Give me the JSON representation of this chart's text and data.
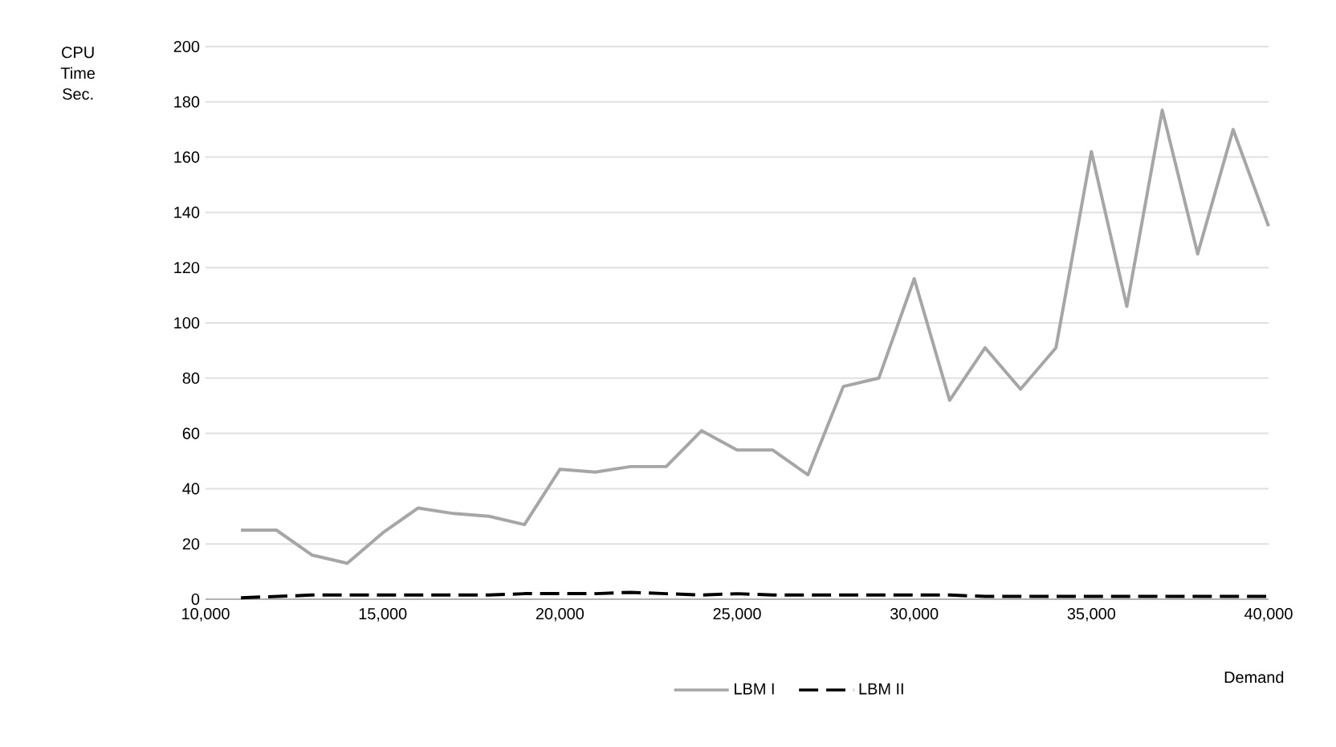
{
  "chart_data": {
    "type": "line",
    "xlabel": "Demand",
    "ylabel": "CPU Time Sec.",
    "x": [
      11000,
      12000,
      13000,
      14000,
      15000,
      16000,
      17000,
      18000,
      19000,
      20000,
      21000,
      22000,
      23000,
      24000,
      25000,
      26000,
      27000,
      28000,
      29000,
      30000,
      31000,
      32000,
      33000,
      34000,
      35000,
      36000,
      37000,
      38000,
      39000,
      40000
    ],
    "series": [
      {
        "name": "LBM I",
        "color": "#a6a6a6",
        "line_style": "solid",
        "values": [
          25,
          25,
          16,
          13,
          24,
          33,
          31,
          30,
          27,
          47,
          46,
          48,
          48,
          61,
          54,
          54,
          45,
          77,
          80,
          116,
          72,
          91,
          76,
          91,
          162,
          106,
          177,
          125,
          170,
          135
        ]
      },
      {
        "name": "LBM II",
        "color": "#000000",
        "line_style": "dashed",
        "values": [
          0.5,
          1,
          1.5,
          1.5,
          1.5,
          1.5,
          1.5,
          1.5,
          2,
          2,
          2,
          2.5,
          2,
          1.5,
          2,
          1.5,
          1.5,
          1.5,
          1.5,
          1.5,
          1.5,
          1,
          1,
          1,
          1,
          1,
          1,
          1,
          1,
          1
        ]
      }
    ],
    "xlim": [
      10000,
      40000
    ],
    "xticks": [
      {
        "value": 10000,
        "label": "10,000"
      },
      {
        "value": 15000,
        "label": "15,000"
      },
      {
        "value": 20000,
        "label": "20,000"
      },
      {
        "value": 25000,
        "label": "25,000"
      },
      {
        "value": 30000,
        "label": "30,000"
      },
      {
        "value": 35000,
        "label": "35,000"
      },
      {
        "value": 40000,
        "label": "40,000"
      }
    ],
    "ylim": [
      0,
      200
    ],
    "yticks": [
      0,
      20,
      40,
      60,
      80,
      100,
      120,
      140,
      160,
      180,
      200
    ],
    "grid": "y",
    "legend": "bottom"
  }
}
